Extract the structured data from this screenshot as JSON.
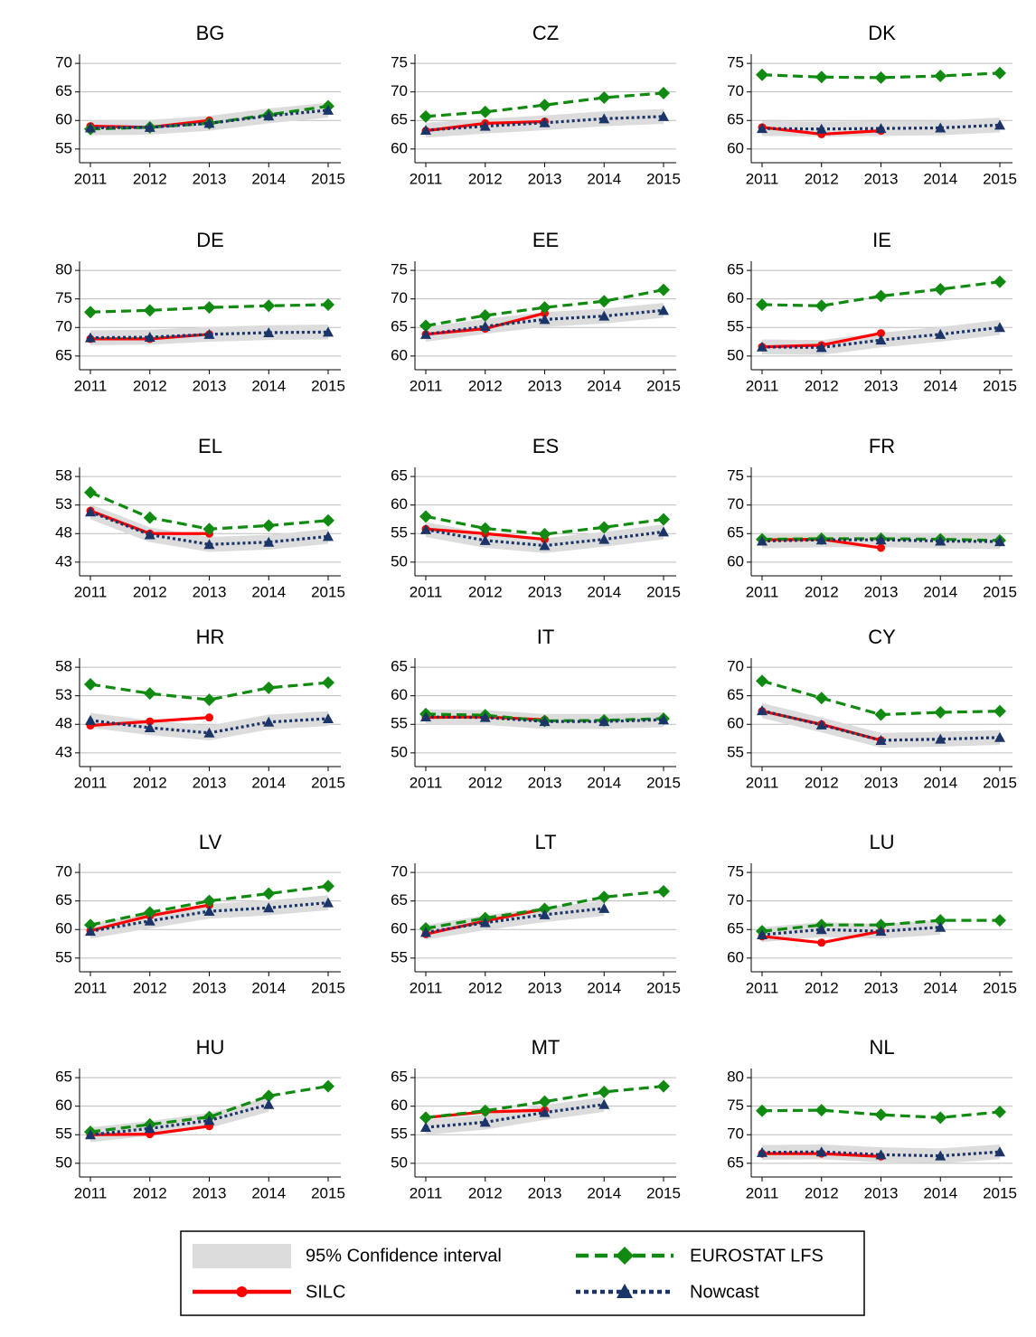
{
  "legend": {
    "band": {
      "name": "95% Confidence interval",
      "color": "#dcdcdc"
    },
    "series": [
      {
        "name": "SILC",
        "color": "#ff0000",
        "marker": "circle",
        "dash": "solid"
      },
      {
        "name": "EUROSTAT LFS",
        "color": "#108a10",
        "marker": "diamond",
        "dash": "dashed"
      },
      {
        "name": "Nowcast",
        "color": "#1c3568",
        "marker": "triangle",
        "dash": "dotted"
      }
    ]
  },
  "chart_data": [
    {
      "type": "line",
      "title": "BG",
      "categories": [
        "2011",
        "2012",
        "2013",
        "2014",
        "2015"
      ],
      "ylim": [
        52.6,
        71.6
      ],
      "yticks": [
        55,
        60,
        65,
        70
      ],
      "ci": {
        "lower": [
          57.4,
          57.5,
          58.2,
          59.5,
          60.5
        ],
        "upper": [
          60,
          60.1,
          60.8,
          62.1,
          63.1
        ]
      },
      "series": [
        {
          "values": [
            59,
            58.8,
            60,
            null,
            null
          ]
        },
        {
          "values": [
            58.5,
            58.8,
            59.5,
            61,
            62.5
          ]
        },
        {
          "values": [
            58.7,
            58.8,
            59.5,
            60.8,
            61.8
          ]
        }
      ]
    },
    {
      "type": "line",
      "title": "CZ",
      "categories": [
        "2011",
        "2012",
        "2013",
        "2014",
        "2015"
      ],
      "ylim": [
        57.6,
        76.6
      ],
      "yticks": [
        60,
        65,
        70,
        75
      ],
      "ci": {
        "lower": [
          62,
          62.7,
          63.3,
          64,
          64.4
        ],
        "upper": [
          64.6,
          65.3,
          65.9,
          66.6,
          67
        ]
      },
      "series": [
        {
          "values": [
            63.2,
            64.5,
            64.8,
            null,
            null
          ]
        },
        {
          "values": [
            65.7,
            66.5,
            67.7,
            69,
            69.8
          ]
        },
        {
          "values": [
            63.3,
            64,
            64.6,
            65.3,
            65.7
          ]
        }
      ]
    },
    {
      "type": "line",
      "title": "DK",
      "categories": [
        "2011",
        "2012",
        "2013",
        "2014",
        "2015"
      ],
      "ylim": [
        57.6,
        76.6
      ],
      "yticks": [
        60,
        65,
        70,
        75
      ],
      "ci": {
        "lower": [
          62.3,
          62.2,
          62.3,
          62.4,
          62.9
        ],
        "upper": [
          64.9,
          64.8,
          64.9,
          65,
          65.5
        ]
      },
      "series": [
        {
          "values": [
            63.8,
            62.6,
            63.2,
            null,
            null
          ]
        },
        {
          "values": [
            73,
            72.6,
            72.5,
            72.8,
            73.3
          ]
        },
        {
          "values": [
            63.6,
            63.5,
            63.6,
            63.7,
            64.2
          ]
        }
      ]
    },
    {
      "type": "line",
      "title": "DE",
      "categories": [
        "2011",
        "2012",
        "2013",
        "2014",
        "2015"
      ],
      "ylim": [
        62.6,
        81.6
      ],
      "yticks": [
        65,
        70,
        75,
        80
      ],
      "ci": {
        "lower": [
          66.9,
          67,
          67.5,
          67.8,
          67.9
        ],
        "upper": [
          69.5,
          69.6,
          70.1,
          70.4,
          70.5
        ]
      },
      "series": [
        {
          "values": [
            68,
            68,
            68.8,
            null,
            null
          ]
        },
        {
          "values": [
            72.7,
            73,
            73.5,
            73.8,
            74
          ]
        },
        {
          "values": [
            68.2,
            68.3,
            68.8,
            69.1,
            69.2
          ]
        }
      ]
    },
    {
      "type": "line",
      "title": "EE",
      "categories": [
        "2011",
        "2012",
        "2013",
        "2014",
        "2015"
      ],
      "ylim": [
        57.6,
        76.6
      ],
      "yticks": [
        60,
        65,
        70,
        75
      ],
      "ci": {
        "lower": [
          62.5,
          63.9,
          65.1,
          65.7,
          66.7
        ],
        "upper": [
          65.1,
          66.5,
          67.7,
          68.3,
          69.3
        ]
      },
      "series": [
        {
          "values": [
            63.8,
            64.8,
            67.5,
            null,
            null
          ]
        },
        {
          "values": [
            65.3,
            67.1,
            68.5,
            69.6,
            71.6
          ]
        },
        {
          "values": [
            63.8,
            65.2,
            66.4,
            67,
            68
          ]
        }
      ]
    },
    {
      "type": "line",
      "title": "IE",
      "categories": [
        "2011",
        "2012",
        "2013",
        "2014",
        "2015"
      ],
      "ylim": [
        47.6,
        66.6
      ],
      "yticks": [
        50,
        55,
        60,
        65
      ],
      "ci": {
        "lower": [
          50.3,
          50.2,
          51.5,
          52.5,
          53.7
        ],
        "upper": [
          52.9,
          52.8,
          54.1,
          55.1,
          56.3
        ]
      },
      "series": [
        {
          "values": [
            51.6,
            51.9,
            54,
            null,
            null
          ]
        },
        {
          "values": [
            59,
            58.8,
            60.5,
            61.7,
            63
          ]
        },
        {
          "values": [
            51.6,
            51.5,
            52.8,
            53.8,
            55
          ]
        }
      ]
    },
    {
      "type": "line",
      "title": "EL",
      "categories": [
        "2011",
        "2012",
        "2013",
        "2014",
        "2015"
      ],
      "ylim": [
        40.6,
        59.6
      ],
      "yticks": [
        43,
        48,
        53,
        58
      ],
      "ci": {
        "lower": [
          50.5,
          46.5,
          44.8,
          45.2,
          46.2
        ],
        "upper": [
          53.1,
          49.1,
          47.4,
          47.8,
          48.8
        ]
      },
      "series": [
        {
          "values": [
            52,
            48,
            48,
            null,
            null
          ]
        },
        {
          "values": [
            55.2,
            50.8,
            48.8,
            49.4,
            50.3
          ]
        },
        {
          "values": [
            51.8,
            47.8,
            46.1,
            46.5,
            47.5
          ]
        }
      ]
    },
    {
      "type": "line",
      "title": "ES",
      "categories": [
        "2011",
        "2012",
        "2013",
        "2014",
        "2015"
      ],
      "ylim": [
        47.6,
        66.6
      ],
      "yticks": [
        50,
        55,
        60,
        65
      ],
      "ci": {
        "lower": [
          54.4,
          52.5,
          51.6,
          52.7,
          54
        ],
        "upper": [
          57,
          55.1,
          54.2,
          55.3,
          56.6
        ]
      },
      "series": [
        {
          "values": [
            55.8,
            55,
            54,
            null,
            null
          ]
        },
        {
          "values": [
            58,
            55.9,
            54.9,
            56.1,
            57.5
          ]
        },
        {
          "values": [
            55.7,
            53.8,
            52.9,
            54,
            55.3
          ]
        }
      ]
    },
    {
      "type": "line",
      "title": "FR",
      "categories": [
        "2011",
        "2012",
        "2013",
        "2014",
        "2015"
      ],
      "ylim": [
        57.6,
        76.6
      ],
      "yticks": [
        60,
        65,
        70,
        75
      ],
      "ci": {
        "lower": [
          62.4,
          62.6,
          62.6,
          62.4,
          62.3
        ],
        "upper": [
          65,
          65.2,
          65.2,
          65,
          64.9
        ]
      },
      "series": [
        {
          "values": [
            63.9,
            64,
            62.5,
            null,
            null
          ]
        },
        {
          "values": [
            64,
            64.1,
            64.1,
            64,
            63.8
          ]
        },
        {
          "values": [
            63.7,
            63.9,
            63.9,
            63.7,
            63.6
          ]
        }
      ]
    },
    {
      "type": "line",
      "title": "HR",
      "categories": [
        "2011",
        "2012",
        "2013",
        "2014",
        "2015"
      ],
      "ylim": [
        40.6,
        59.6
      ],
      "yticks": [
        43,
        48,
        53,
        58
      ],
      "ci": {
        "lower": [
          47.4,
          46.1,
          45.2,
          47.1,
          47.7
        ],
        "upper": [
          50,
          48.7,
          47.8,
          49.7,
          50.3
        ]
      },
      "series": [
        {
          "values": [
            47.8,
            48.5,
            49.2,
            null,
            null
          ]
        },
        {
          "values": [
            55,
            53.4,
            52.3,
            54.4,
            55.3
          ]
        },
        {
          "values": [
            48.7,
            47.4,
            46.5,
            48.4,
            49
          ]
        }
      ]
    },
    {
      "type": "line",
      "title": "IT",
      "categories": [
        "2011",
        "2012",
        "2013",
        "2014",
        "2015"
      ],
      "ylim": [
        47.6,
        66.6
      ],
      "yticks": [
        50,
        55,
        60,
        65
      ],
      "ci": {
        "lower": [
          55,
          54.9,
          54.2,
          54.2,
          54.5
        ],
        "upper": [
          57.6,
          57.5,
          56.8,
          56.8,
          57.1
        ]
      },
      "series": [
        {
          "values": [
            56.2,
            56.3,
            55.8,
            null,
            null
          ]
        },
        {
          "values": [
            56.8,
            56.6,
            55.6,
            55.7,
            56
          ]
        },
        {
          "values": [
            56.3,
            56.2,
            55.5,
            55.5,
            55.8
          ]
        }
      ]
    },
    {
      "type": "line",
      "title": "CY",
      "categories": [
        "2011",
        "2012",
        "2013",
        "2014",
        "2015"
      ],
      "ylim": [
        52.6,
        71.6
      ],
      "yticks": [
        55,
        60,
        65,
        70
      ],
      "ci": {
        "lower": [
          61.1,
          58.6,
          55.9,
          56.1,
          56.4
        ],
        "upper": [
          63.7,
          61.2,
          58.5,
          58.7,
          59
        ]
      },
      "series": [
        {
          "values": [
            62.3,
            60,
            57.2,
            null,
            null
          ]
        },
        {
          "values": [
            67.6,
            64.6,
            61.7,
            62.1,
            62.3
          ]
        },
        {
          "values": [
            62.4,
            59.9,
            57.2,
            57.4,
            57.7
          ]
        }
      ]
    },
    {
      "type": "line",
      "title": "LV",
      "categories": [
        "2011",
        "2012",
        "2013",
        "2014",
        "2015"
      ],
      "ylim": [
        52.6,
        71.6
      ],
      "yticks": [
        55,
        60,
        65,
        70
      ],
      "ci": {
        "lower": [
          58.4,
          60.2,
          61.9,
          62.5,
          63.4
        ],
        "upper": [
          61,
          62.8,
          64.5,
          65.1,
          66
        ]
      },
      "series": [
        {
          "values": [
            59.8,
            62.4,
            64.3,
            null,
            null
          ]
        },
        {
          "values": [
            60.8,
            63,
            65,
            66.3,
            67.6
          ]
        },
        {
          "values": [
            59.7,
            61.5,
            63.2,
            63.8,
            64.7
          ]
        }
      ]
    },
    {
      "type": "line",
      "title": "LT",
      "categories": [
        "2011",
        "2012",
        "2013",
        "2014",
        "2015"
      ],
      "ylim": [
        52.6,
        71.6
      ],
      "yticks": [
        55,
        60,
        65,
        70
      ],
      "ci": {
        "lower": [
          58.2,
          59.9,
          61.3,
          62.4,
          null
        ],
        "upper": [
          60.8,
          62.5,
          63.9,
          65,
          null
        ]
      },
      "series": [
        {
          "values": [
            59.2,
            61.5,
            63.6,
            null,
            null
          ]
        },
        {
          "values": [
            60.2,
            62,
            63.6,
            65.7,
            66.7
          ]
        },
        {
          "values": [
            59.5,
            61.2,
            62.6,
            63.7,
            null
          ]
        }
      ]
    },
    {
      "type": "line",
      "title": "LU",
      "categories": [
        "2011",
        "2012",
        "2013",
        "2014",
        "2015"
      ],
      "ylim": [
        57.6,
        76.6
      ],
      "yticks": [
        60,
        65,
        70,
        75
      ],
      "ci": {
        "lower": [
          62.8,
          63.7,
          63.4,
          64.1,
          null
        ],
        "upper": [
          65.4,
          66.3,
          66,
          66.7,
          null
        ]
      },
      "series": [
        {
          "values": [
            63.8,
            62.7,
            64.7,
            null,
            null
          ]
        },
        {
          "values": [
            64.7,
            65.8,
            65.8,
            66.6,
            66.6
          ]
        },
        {
          "values": [
            64.1,
            65,
            64.7,
            65.4,
            null
          ]
        }
      ]
    },
    {
      "type": "line",
      "title": "HU",
      "categories": [
        "2011",
        "2012",
        "2013",
        "2014",
        "2015"
      ],
      "ylim": [
        47.6,
        66.6
      ],
      "yticks": [
        50,
        55,
        60,
        65
      ],
      "ci": {
        "lower": [
          53.7,
          54.8,
          56.2,
          59,
          null
        ],
        "upper": [
          56.3,
          57.4,
          58.8,
          61.6,
          null
        ]
      },
      "series": [
        {
          "values": [
            55,
            55.1,
            56.5,
            null,
            null
          ]
        },
        {
          "values": [
            55.5,
            56.8,
            58.1,
            61.8,
            63.5
          ]
        },
        {
          "values": [
            55,
            56.1,
            57.5,
            60.3,
            null
          ]
        }
      ]
    },
    {
      "type": "line",
      "title": "MT",
      "categories": [
        "2011",
        "2012",
        "2013",
        "2014",
        "2015"
      ],
      "ylim": [
        47.6,
        66.6
      ],
      "yticks": [
        50,
        55,
        60,
        65
      ],
      "ci": {
        "lower": [
          55,
          55.9,
          57.6,
          59,
          null
        ],
        "upper": [
          57.6,
          58.5,
          60.2,
          61.6,
          null
        ]
      },
      "series": [
        {
          "values": [
            58,
            59,
            59.3,
            null,
            null
          ]
        },
        {
          "values": [
            58,
            59.2,
            60.8,
            62.5,
            63.5
          ]
        },
        {
          "values": [
            56.3,
            57.2,
            58.9,
            60.3,
            null
          ]
        }
      ]
    },
    {
      "type": "line",
      "title": "NL",
      "categories": [
        "2011",
        "2012",
        "2013",
        "2014",
        "2015"
      ],
      "ylim": [
        62.6,
        81.6
      ],
      "yticks": [
        65,
        70,
        75,
        80
      ],
      "ci": {
        "lower": [
          65.6,
          65.7,
          65.2,
          65,
          65.7
        ],
        "upper": [
          68.2,
          68.3,
          67.8,
          67.6,
          68.3
        ]
      },
      "series": [
        {
          "values": [
            66.7,
            66.7,
            66.2,
            null,
            null
          ]
        },
        {
          "values": [
            74.2,
            74.3,
            73.5,
            73,
            74
          ]
        },
        {
          "values": [
            66.9,
            67,
            66.5,
            66.3,
            67
          ]
        }
      ]
    }
  ]
}
